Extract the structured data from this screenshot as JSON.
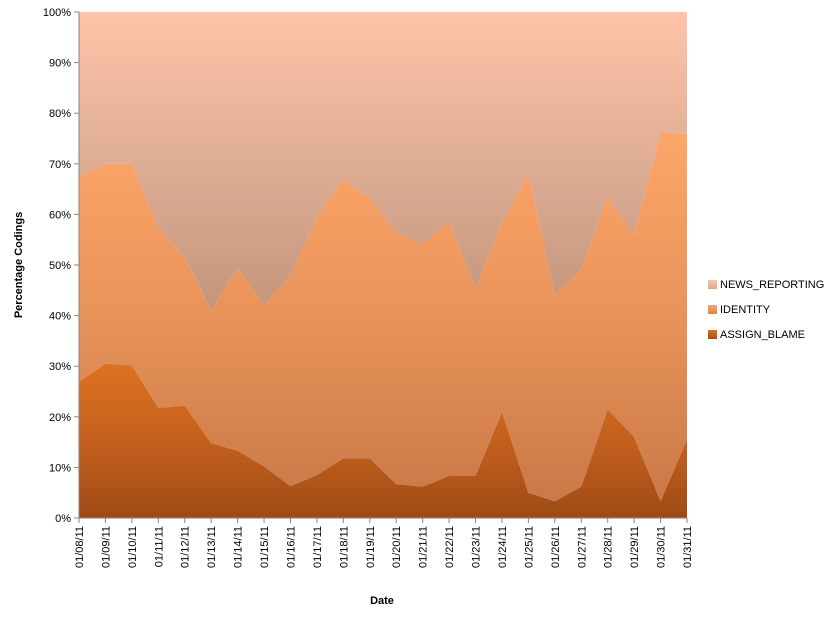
{
  "chart_data": {
    "type": "area",
    "stacked": "percent",
    "xlabel": "Date",
    "ylabel": "Percentage Codings",
    "ylim": [
      0,
      100
    ],
    "y_ticks": [
      "0%",
      "10%",
      "20%",
      "30%",
      "40%",
      "50%",
      "60%",
      "70%",
      "80%",
      "90%",
      "100%"
    ],
    "categories": [
      "01/08/11",
      "01/09/11",
      "01/10/11",
      "01/11/11",
      "01/12/11",
      "01/13/11",
      "01/14/11",
      "01/15/11",
      "01/16/11",
      "01/17/11",
      "01/18/11",
      "01/19/11",
      "01/20/11",
      "01/21/11",
      "01/22/11",
      "01/23/11",
      "01/24/11",
      "01/25/11",
      "01/26/11",
      "01/27/11",
      "01/28/11",
      "01/29/11",
      "01/30/11",
      "01/31/11"
    ],
    "legend_position": "right",
    "series": [
      {
        "name": "ASSIGN_BLAME",
        "color": "#c0601a",
        "values": [
          27,
          30.5,
          30.2,
          21.8,
          22.2,
          14.8,
          13.3,
          10.2,
          6.3,
          8.5,
          11.8,
          11.8,
          6.7,
          6.2,
          8.3,
          8.3,
          21,
          5,
          3.3,
          6.2,
          21.5,
          16,
          3.3,
          15.5
        ]
      },
      {
        "name": "IDENTITY",
        "color": "#e8935a",
        "values": [
          40.5,
          39.5,
          39.8,
          35.5,
          29.3,
          26.2,
          36.2,
          31.8,
          41.7,
          51,
          55.2,
          51.4,
          49.6,
          48.1,
          50.2,
          37,
          37.5,
          63,
          40.7,
          42.8,
          42,
          40,
          73,
          60.5
        ]
      },
      {
        "name": "NEWS_REPORTING",
        "color": "#f6b99b",
        "values": [
          32.5,
          30,
          30,
          42.7,
          48.5,
          59,
          50.5,
          58,
          52,
          40.5,
          33,
          36.8,
          43.7,
          45.7,
          41.5,
          54.7,
          41.5,
          32,
          56,
          51,
          36.5,
          44,
          23.7,
          24
        ]
      }
    ]
  }
}
